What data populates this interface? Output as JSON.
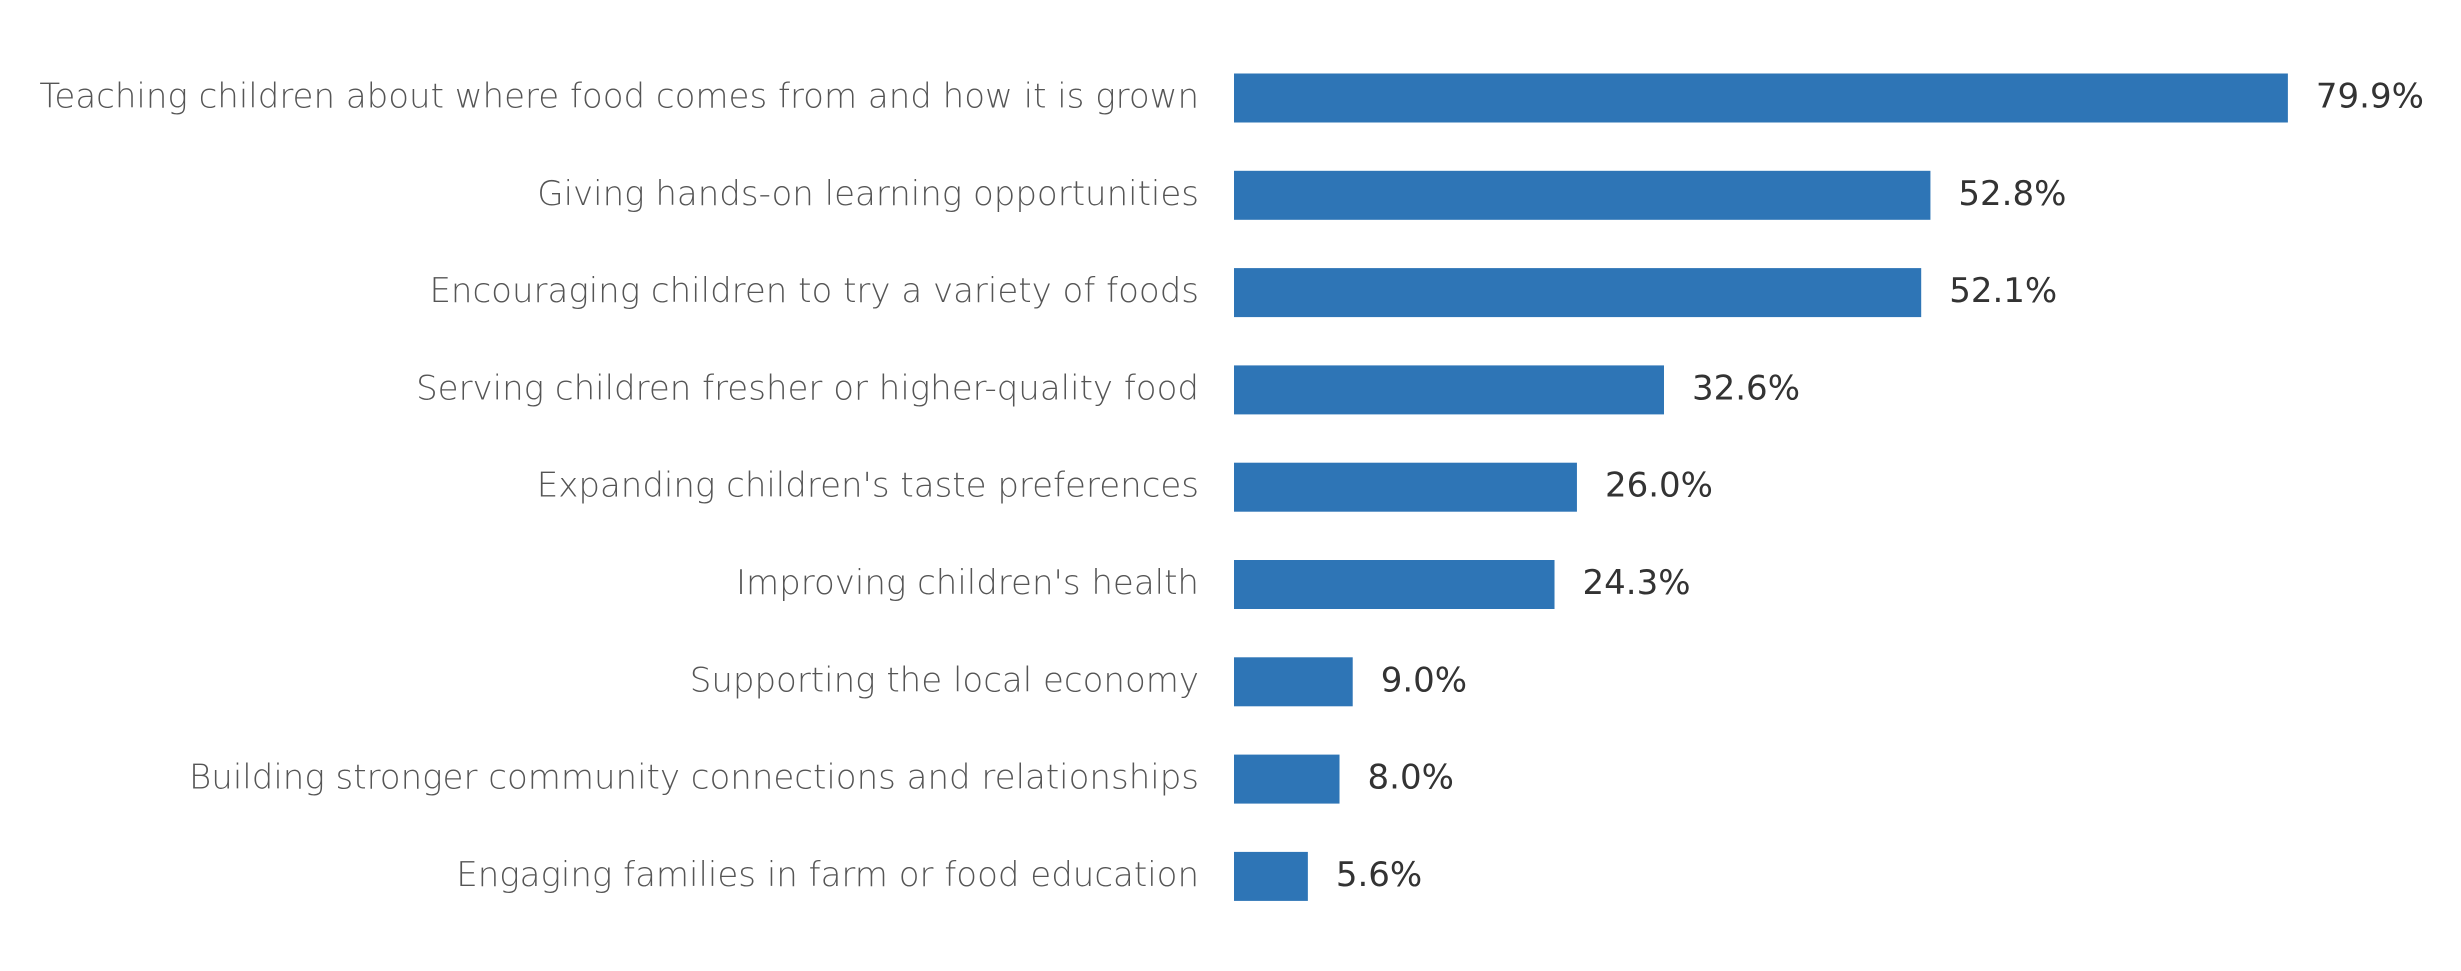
{
  "chart_data": {
    "type": "bar",
    "orientation": "horizontal",
    "color": "#2e75b6",
    "categories": [
      "Teaching children about where food comes from and how it is grown",
      "Giving hands-on learning opportunities",
      "Encouraging children to try a variety of foods",
      "Serving children fresher or higher-quality food",
      "Expanding children's taste preferences",
      "Improving children's health",
      "Supporting the local economy",
      "Building stronger community connections and relationships",
      "Engaging families in farm or food education"
    ],
    "values": [
      79.9,
      52.8,
      52.1,
      32.6,
      26.0,
      24.3,
      9.0,
      8.0,
      5.6
    ],
    "value_labels": [
      "79.9%",
      "52.8%",
      "52.1%",
      "32.6%",
      "26.0%",
      "24.3%",
      "9.0%",
      "8.0%",
      "5.6%"
    ]
  }
}
